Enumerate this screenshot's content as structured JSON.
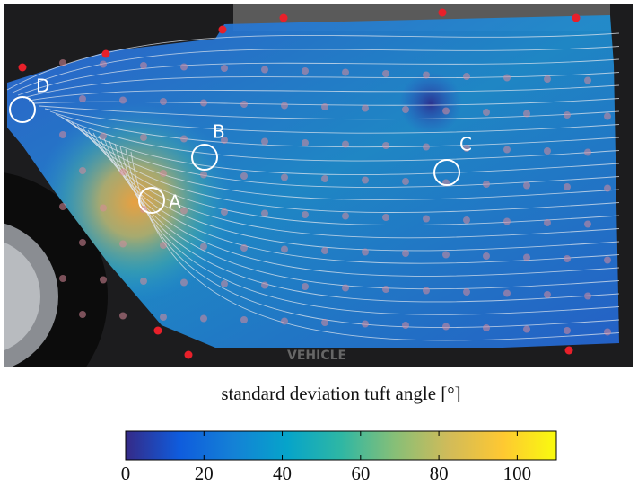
{
  "chart_data": {
    "type": "colorbar",
    "label": "standard deviation tuft angle [°]",
    "xlim": [
      0,
      110
    ],
    "xticks": [
      0,
      20,
      40,
      60,
      80,
      100
    ],
    "colormap": [
      "#352a87",
      "#0f5cdd",
      "#1481d6",
      "#06a4ca",
      "#2eb7a4",
      "#87bf77",
      "#d1bb59",
      "#fec832",
      "#f9fb0e"
    ],
    "annotations": [
      "A",
      "B",
      "C",
      "D"
    ]
  }
}
